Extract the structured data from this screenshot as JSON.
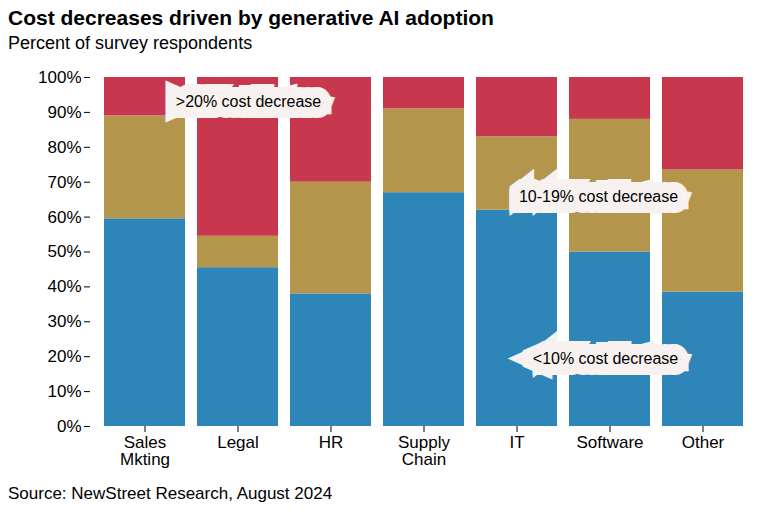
{
  "chart_data": {
    "type": "bar",
    "stacked": true,
    "title": "Cost decreases driven by generative AI adoption",
    "subtitle": "Percent of survey respondents",
    "caption": "Source: NewStreet Research, August 2024",
    "categories": [
      "Sales\nMkting",
      "Legal",
      "HR",
      "Supply\nChain",
      "IT",
      "Software",
      "Other"
    ],
    "series": [
      {
        "name": "<10% cost decrease",
        "color": "#2e86b8",
        "values": [
          59.5,
          45.5,
          38,
          67,
          62,
          50,
          38.5
        ]
      },
      {
        "name": "10-19% cost decrease",
        "color": "#b3954b",
        "values": [
          29.5,
          9,
          32,
          24,
          21,
          38,
          35
        ]
      },
      {
        "name": ">20% cost decrease",
        "color": "#c7384f",
        "values": [
          11,
          45.5,
          30,
          9,
          17,
          12,
          26.5
        ]
      }
    ],
    "ylim": [
      0,
      100
    ],
    "yticks": [
      {
        "value": 0,
        "label": "0%"
      },
      {
        "value": 10,
        "label": "10%"
      },
      {
        "value": 20,
        "label": "20%"
      },
      {
        "value": 30,
        "label": "30%"
      },
      {
        "value": 40,
        "label": "40%"
      },
      {
        "value": 50,
        "label": "50%"
      },
      {
        "value": 60,
        "label": "60%"
      },
      {
        "value": 70,
        "label": "70%"
      },
      {
        "value": 80,
        "label": "80%"
      },
      {
        "value": 90,
        "label": "90%"
      },
      {
        "value": 100,
        "label": "100%"
      }
    ],
    "grid": false,
    "data_labels": false
  }
}
